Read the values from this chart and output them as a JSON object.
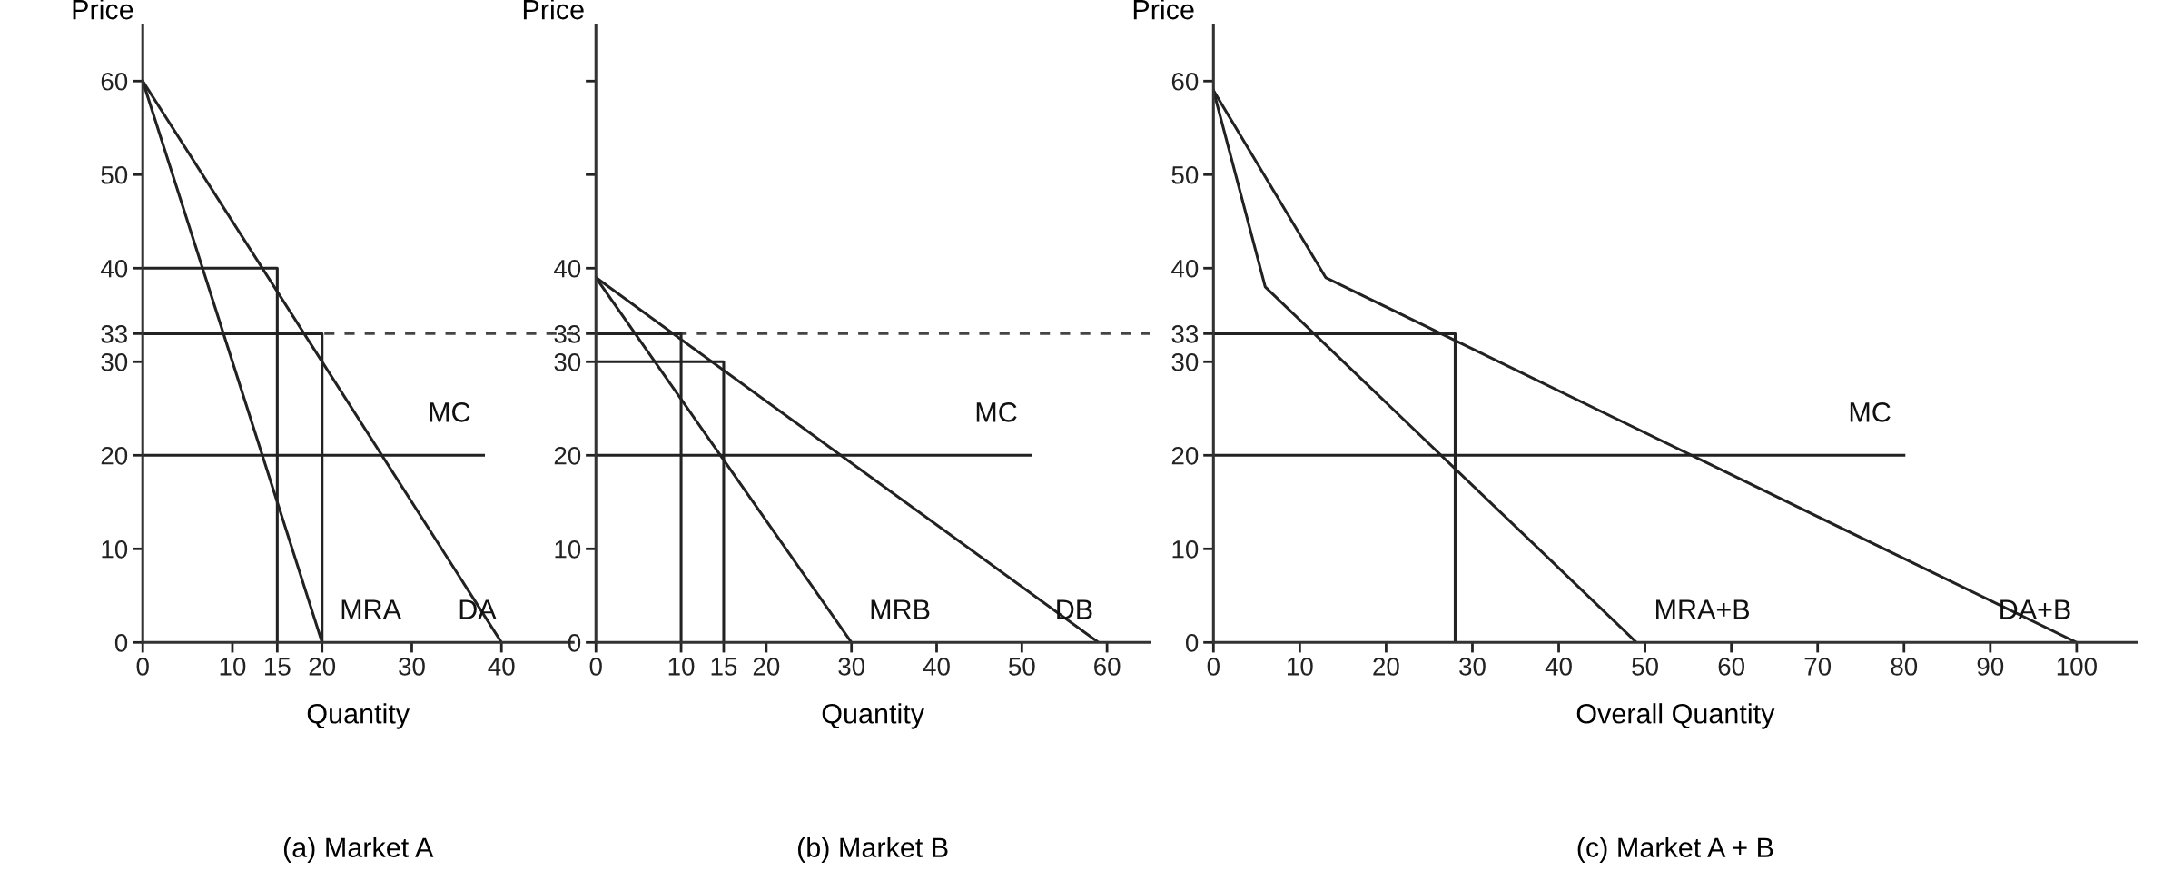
{
  "chart_data": [
    {
      "type": "line",
      "title": "(a) Market A",
      "xlabel": "Quantity",
      "ylabel": "Price",
      "xlim": [
        0,
        48
      ],
      "ylim": [
        0,
        66
      ],
      "xticks": [
        0,
        10,
        15,
        20,
        30,
        40
      ],
      "yticks": [
        0,
        10,
        20,
        30,
        33,
        40,
        50,
        60
      ],
      "grid": false,
      "marker": "none",
      "series": [
        {
          "name": "DA",
          "color": "#222222",
          "x": [
            0,
            40
          ],
          "values": [
            60,
            0
          ]
        },
        {
          "name": "MRA",
          "color": "#222222",
          "x": [
            0,
            20
          ],
          "values": [
            60,
            0
          ]
        },
        {
          "name": "MC",
          "color": "#222222",
          "x": [
            0,
            38
          ],
          "values": [
            20,
            20
          ]
        },
        {
          "color": "#222222",
          "x": [
            0,
            15,
            15
          ],
          "values": [
            40,
            40,
            0
          ]
        },
        {
          "color": "#222222",
          "x": [
            0,
            20,
            20
          ],
          "values": [
            33,
            33,
            0
          ]
        }
      ],
      "ref_lines": [
        {
          "axis": "y",
          "value": 33,
          "line_style": "dashed",
          "color": "#444444"
        }
      ]
    },
    {
      "type": "line",
      "title": "(b) Market B",
      "xlabel": "Quantity",
      "ylabel": "Price",
      "xlim": [
        0,
        65
      ],
      "ylim": [
        0,
        66
      ],
      "xticks": [
        0,
        10,
        15,
        20,
        30,
        40,
        50,
        60
      ],
      "yticks": [
        0,
        10,
        20,
        30,
        33,
        40,
        {
          "value": 50,
          "label": null
        },
        {
          "value": 60,
          "label": null
        }
      ],
      "grid": false,
      "marker": "none",
      "series": [
        {
          "name": "DB",
          "color": "#222222",
          "x": [
            0,
            59
          ],
          "values": [
            39,
            0
          ]
        },
        {
          "name": "MRB",
          "color": "#222222",
          "x": [
            0,
            30
          ],
          "values": [
            39,
            0
          ]
        },
        {
          "name": "MC",
          "color": "#222222",
          "x": [
            0,
            51
          ],
          "values": [
            20,
            20
          ]
        },
        {
          "color": "#222222",
          "x": [
            0,
            10,
            10
          ],
          "values": [
            33,
            33,
            0
          ]
        },
        {
          "color": "#222222",
          "x": [
            0,
            15,
            15
          ],
          "values": [
            30,
            30,
            0
          ]
        }
      ],
      "ref_lines": [
        {
          "axis": "y",
          "value": 33,
          "line_style": "dashed",
          "color": "#444444"
        }
      ]
    },
    {
      "type": "line",
      "title": "(c) Market A + B",
      "xlabel": "Overall Quantity",
      "ylabel": "Price",
      "xlim": [
        0,
        107
      ],
      "ylim": [
        0,
        66
      ],
      "xticks": [
        0,
        10,
        20,
        30,
        40,
        50,
        60,
        70,
        80,
        90,
        100
      ],
      "yticks": [
        0,
        10,
        20,
        30,
        33,
        40,
        50,
        60
      ],
      "grid": false,
      "marker": "none",
      "series": [
        {
          "name": "DA+B",
          "color": "#222222",
          "x": [
            0,
            13,
            100
          ],
          "values": [
            59,
            39,
            0
          ]
        },
        {
          "name": "MRA+B",
          "color": "#222222",
          "x": [
            0,
            6,
            49
          ],
          "values": [
            59,
            38,
            0
          ]
        },
        {
          "name": "MC",
          "color": "#222222",
          "x": [
            0,
            80
          ],
          "values": [
            20,
            20
          ]
        },
        {
          "color": "#222222",
          "x": [
            0,
            28,
            28
          ],
          "values": [
            33,
            33,
            0
          ]
        }
      ]
    }
  ]
}
